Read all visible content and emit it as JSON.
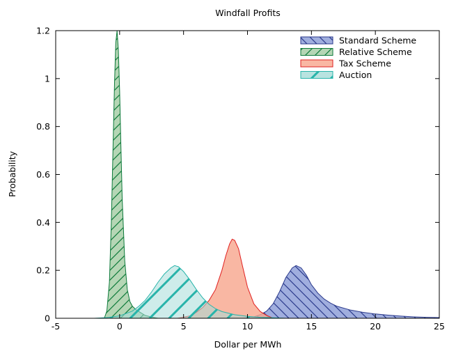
{
  "chart_data": {
    "type": "area",
    "title": "Windfall Profits",
    "xlabel": "Dollar per MWh",
    "ylabel": "Probability",
    "xlim": [
      -5,
      25
    ],
    "ylim": [
      0,
      1.2
    ],
    "xticks": [
      -5,
      0,
      5,
      10,
      15,
      20,
      25
    ],
    "yticks": [
      0,
      0.2,
      0.4,
      0.6,
      0.8,
      1,
      1.2
    ],
    "xtick_labels": [
      "-5",
      "0",
      "5",
      "10",
      "15",
      "20",
      "25"
    ],
    "ytick_labels": [
      "0",
      "0.2",
      "0.4",
      "0.6",
      "0.8",
      "1",
      "1.2"
    ],
    "grid": false,
    "legend_position": "top-right",
    "series": [
      {
        "name": "Standard Scheme",
        "fill": "#8fa0d8",
        "stroke": "#2b3a8c",
        "hatch": "backslash",
        "x": [
          9.5,
          10.5,
          11,
          11.5,
          12,
          12.5,
          13,
          13.5,
          13.8,
          14.2,
          14.6,
          15,
          15.5,
          16,
          16.5,
          17,
          18,
          19,
          20,
          21,
          22,
          23,
          24,
          25
        ],
        "y": [
          0,
          0.006,
          0.015,
          0.03,
          0.06,
          0.11,
          0.17,
          0.21,
          0.22,
          0.21,
          0.18,
          0.14,
          0.105,
          0.08,
          0.063,
          0.05,
          0.035,
          0.025,
          0.018,
          0.013,
          0.009,
          0.006,
          0.004,
          0.003
        ]
      },
      {
        "name": "Relative Scheme",
        "fill": "#a8cfa8",
        "stroke": "#0d7a3a",
        "hatch": "slash",
        "x": [
          -1.2,
          -1,
          -0.8,
          -0.65,
          -0.5,
          -0.4,
          -0.3,
          -0.2,
          -0.1,
          0,
          0.1,
          0.2,
          0.4,
          0.6,
          0.8,
          1,
          1.3,
          1.6,
          2,
          2.5,
          3
        ],
        "y": [
          0,
          0.03,
          0.15,
          0.4,
          0.75,
          0.98,
          1.15,
          1.2,
          1.12,
          0.95,
          0.72,
          0.5,
          0.24,
          0.12,
          0.07,
          0.05,
          0.035,
          0.025,
          0.012,
          0.005,
          0
        ]
      },
      {
        "name": "Tax Scheme",
        "fill": "#f7a58c",
        "stroke": "#e02020",
        "hatch": "none",
        "x": [
          4.5,
          5.5,
          6,
          6.5,
          7,
          7.5,
          8,
          8.3,
          8.6,
          8.8,
          9,
          9.3,
          9.6,
          10,
          10.5,
          11,
          11.5,
          12
        ],
        "y": [
          0,
          0.01,
          0.025,
          0.045,
          0.075,
          0.12,
          0.2,
          0.26,
          0.31,
          0.33,
          0.325,
          0.29,
          0.22,
          0.13,
          0.06,
          0.028,
          0.012,
          0
        ],
        "opacity": 0.8
      },
      {
        "name": "Auction",
        "fill": "#a6dcd8",
        "stroke": "#28b4aa",
        "hatch": "slash",
        "x": [
          -2,
          -1,
          0,
          1,
          1.5,
          2,
          2.5,
          3,
          3.5,
          4,
          4.3,
          4.6,
          5,
          5.5,
          6,
          6.5,
          7,
          7.5,
          8,
          9,
          10,
          11,
          12,
          13
        ],
        "y": [
          0,
          0.003,
          0.01,
          0.03,
          0.05,
          0.075,
          0.11,
          0.15,
          0.185,
          0.21,
          0.22,
          0.215,
          0.195,
          0.16,
          0.12,
          0.085,
          0.058,
          0.04,
          0.028,
          0.015,
          0.008,
          0.004,
          0.002,
          0
        ],
        "opacity": 0.55
      }
    ]
  }
}
